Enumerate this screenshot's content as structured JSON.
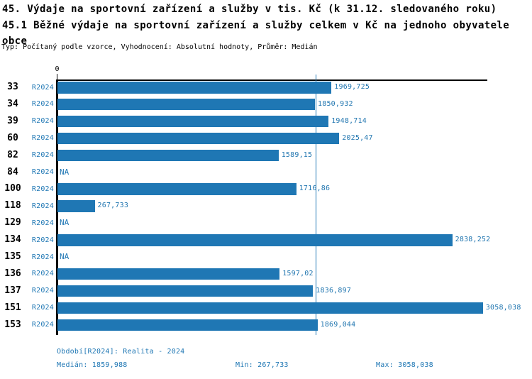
{
  "header": {
    "title_line1": "45. Výdaje na sportovní zařízení a služby v tis. Kč (k 31.12. sledovaného roku)",
    "title_line2": "45.1 Běžné výdaje na sportovní zařízení a služby celkem v Kč na jednoho obyvatele obce",
    "meta_line": "Typ: Počítaný podle vzorce, Vyhodnocení: Absolutní hodnoty, Průměr: Medián"
  },
  "chart_data": {
    "type": "bar",
    "orientation": "horizontal",
    "title": "",
    "xlabel": "",
    "ylabel": "",
    "xlim": [
      0,
      3095
    ],
    "x_tick_labels": [
      "0"
    ],
    "grid": false,
    "legend_position": "none",
    "bar_color": "#1f77b4",
    "na_text": "NA",
    "median_value": 1859.988,
    "categories": [
      "33",
      "34",
      "39",
      "60",
      "82",
      "84",
      "100",
      "118",
      "129",
      "134",
      "135",
      "136",
      "137",
      "151",
      "153"
    ],
    "series": [
      {
        "name": "R2024",
        "values": [
          1969.725,
          1850.932,
          1948.714,
          2025.47,
          1589.15,
          null,
          1716.86,
          267.733,
          null,
          2838.252,
          null,
          1597.02,
          1836.897,
          3058.038,
          1869.044
        ],
        "value_labels": [
          "1969,725",
          "1850,932",
          "1948,714",
          "2025,47",
          "1589,15",
          "NA",
          "1716,86",
          "267,733",
          "NA",
          "2838,252",
          "NA",
          "1597,02",
          "1836,897",
          "3058,038",
          "1869,044"
        ]
      }
    ]
  },
  "footer": {
    "period": "Období[R2024]: Realita - 2024",
    "median": "Medián: 1859,988",
    "min": "Min: 267,733",
    "max": "Max: 3058,038"
  },
  "colors": {
    "bar": "#1f77b4",
    "blue_text": "#1f77b4",
    "axis": "#000000",
    "title_text": "#000000"
  }
}
